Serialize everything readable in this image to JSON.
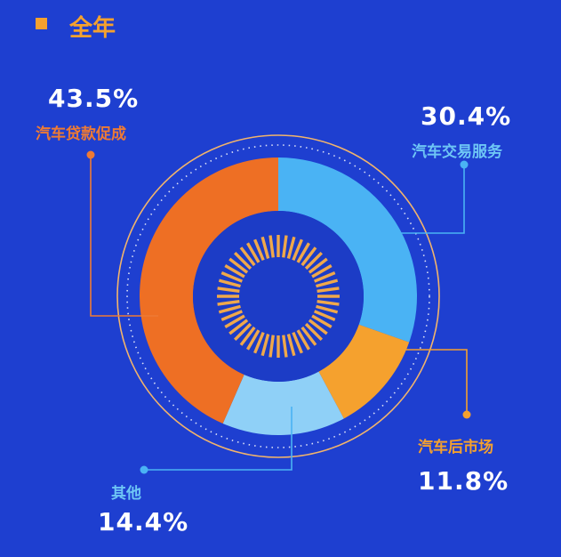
{
  "header": {
    "title": "全年"
  },
  "colors": {
    "background": "#1E3FD0",
    "accent": "#F5A12E",
    "ring": "#F2B46B"
  },
  "chart_data": {
    "type": "pie",
    "categories": [
      "汽车贷款促成",
      "汽车交易服务",
      "汽车后市场",
      "其他"
    ],
    "values": [
      43.5,
      30.4,
      11.8,
      14.4
    ],
    "value_labels": [
      "43.5%",
      "30.4%",
      "11.8%",
      "14.4%"
    ],
    "colors": [
      "#EE6F24",
      "#4AB3F4",
      "#F5A12E",
      "#8FD0F7"
    ],
    "label_colors": [
      "#EE7A34",
      "#6EC6F5",
      "#F5A12E",
      "#6EC6F5"
    ],
    "title": "全年"
  }
}
